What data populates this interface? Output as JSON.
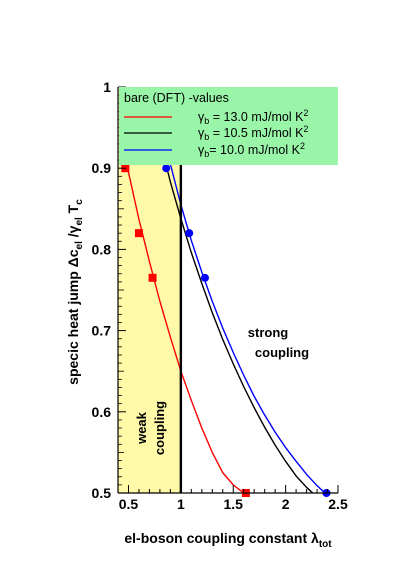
{
  "chart_data": {
    "type": "line",
    "xlabel_main": "el-boson coupling constant λ",
    "xlabel_sub": "tot",
    "ylabel_main": "specic heat jump Δc",
    "ylabel_sub1": "el",
    "ylabel_mid": " /γ",
    "ylabel_sub2": "el",
    "ylabel_end": " T",
    "ylabel_sub3": "c",
    "xlim": [
      0.4,
      2.5
    ],
    "ylim": [
      0.5,
      1.0
    ],
    "x_ticks": [
      0.5,
      1,
      1.5,
      2,
      2.5
    ],
    "x_tick_labels": [
      "0.5",
      "1",
      "1.5",
      "2",
      "2.5"
    ],
    "y_ticks": [
      0.5,
      0.6,
      0.7,
      0.8,
      0.9,
      1
    ],
    "y_tick_labels": [
      "0.5",
      "0.6",
      "0.7",
      "0.8",
      "0.9",
      "1"
    ],
    "weak_region_x": [
      0.4,
      1.0
    ],
    "weak_region_color": "#fff9a8",
    "boundary_x": 1.0,
    "legend": {
      "title": "bare (DFT) -values",
      "background": "#99f5a8",
      "entries": [
        {
          "symbol": "γ",
          "sub": "b",
          "text": " = 13.0 mJ/mol K",
          "sup": "2",
          "color": "#ff0000"
        },
        {
          "symbol": "γ",
          "sub": "b",
          "text": " = 10.5 mJ/mol K",
          "sup": "2",
          "color": "#000000"
        },
        {
          "symbol": "γ",
          "sub": "b",
          "text": "= 10.0 mJ/mol K",
          "sup": "2",
          "color": "#0000ff"
        }
      ]
    },
    "annotations": {
      "weak": "weak",
      "weak2": "coupling",
      "strong": "strong",
      "strong2": "coupling"
    },
    "series": [
      {
        "color": "#ff0000",
        "line_x": [
          0.44,
          0.5,
          0.6,
          0.7,
          0.8,
          0.9,
          1.0,
          1.1,
          1.2,
          1.3,
          1.4,
          1.5,
          1.6
        ],
        "line_y": [
          0.935,
          0.895,
          0.837,
          0.785,
          0.736,
          0.692,
          0.65,
          0.614,
          0.58,
          0.55,
          0.525,
          0.51,
          0.5
        ],
        "points_x": [
          0.47,
          0.6,
          0.73,
          1.62
        ],
        "points_y": [
          0.9,
          0.82,
          0.765,
          0.5
        ],
        "marker": "square"
      },
      {
        "color": "#000000",
        "line_x": [
          0.8,
          0.9,
          1.0,
          1.1,
          1.2,
          1.3,
          1.4,
          1.5,
          1.6,
          1.7,
          1.8,
          1.9,
          2.0,
          2.1,
          2.2,
          2.3
        ],
        "line_y": [
          0.935,
          0.883,
          0.838,
          0.796,
          0.758,
          0.722,
          0.689,
          0.659,
          0.631,
          0.605,
          0.581,
          0.559,
          0.539,
          0.521,
          0.507,
          0.495
        ],
        "points_x": [],
        "points_y": [],
        "marker": "none"
      },
      {
        "color": "#0000ff",
        "line_x": [
          0.85,
          0.9,
          1.0,
          1.1,
          1.2,
          1.3,
          1.4,
          1.5,
          1.6,
          1.7,
          1.8,
          1.9,
          2.0,
          2.1,
          2.2,
          2.3,
          2.4
        ],
        "line_y": [
          0.935,
          0.905,
          0.855,
          0.811,
          0.772,
          0.736,
          0.703,
          0.673,
          0.645,
          0.619,
          0.596,
          0.575,
          0.556,
          0.539,
          0.523,
          0.509,
          0.497
        ],
        "points_x": [
          0.86,
          1.08,
          1.23,
          2.39
        ],
        "points_y": [
          0.9,
          0.82,
          0.765,
          0.5
        ],
        "marker": "circle"
      }
    ]
  }
}
